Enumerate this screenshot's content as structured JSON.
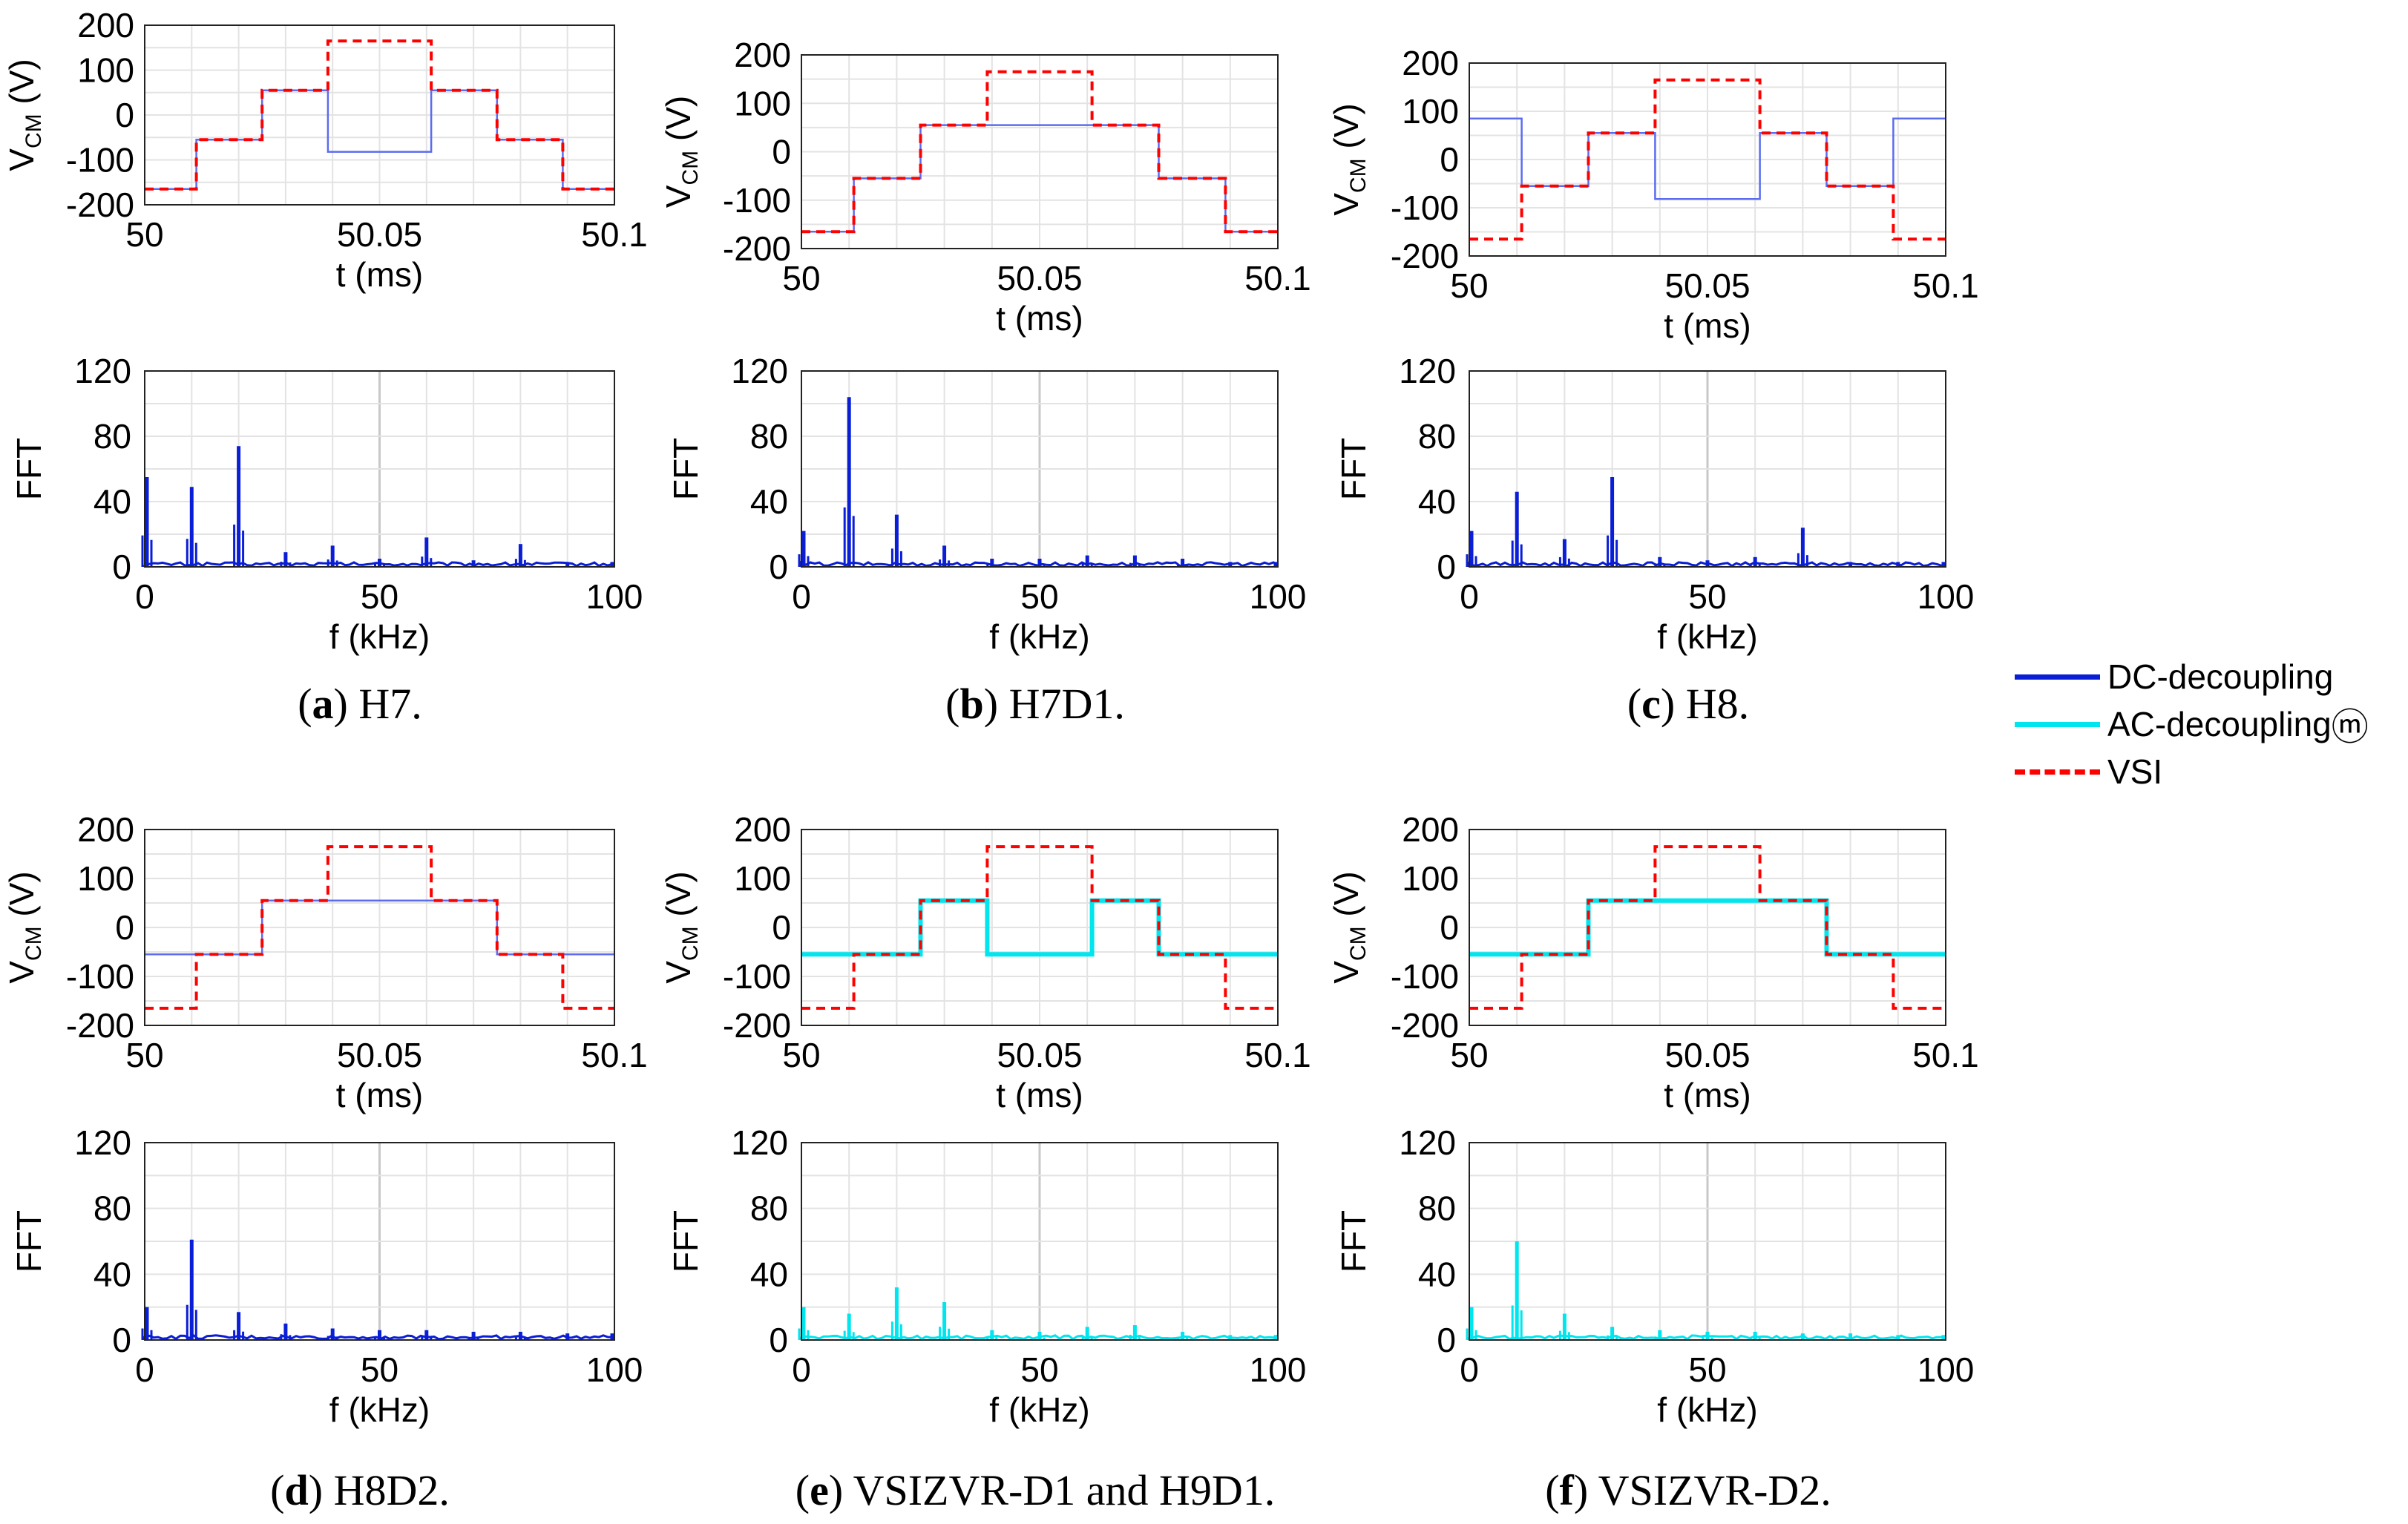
{
  "colors": {
    "dc": "#0a1ed6",
    "dc_time": "#5b6cf0",
    "ac": "#00e5ee",
    "vsi": "#ff0000"
  },
  "legend": {
    "items": [
      {
        "label": "DC-decoupling",
        "color": "#0a1ed6",
        "style": "solid"
      },
      {
        "label": "AC-decoupling",
        "color": "#00e5ee",
        "style": "solid"
      },
      {
        "label": "VSI",
        "color": "#ff0000",
        "style": "dashed"
      }
    ],
    "watermark_glyph": "ⓜ"
  },
  "panels": [
    {
      "letter": "a",
      "caption": "H7.",
      "decoupling": "dc"
    },
    {
      "letter": "b",
      "caption": "H7D1.",
      "decoupling": "dc"
    },
    {
      "letter": "c",
      "caption": "H8.",
      "decoupling": "dc"
    },
    {
      "letter": "d",
      "caption": "H8D2.",
      "decoupling": "dc"
    },
    {
      "letter": "e",
      "caption": "VSIZVR-D1 and H9D1.",
      "decoupling": "ac"
    },
    {
      "letter": "f",
      "caption": "VSIZVR-D2.",
      "decoupling": "ac"
    }
  ],
  "chart_data": [
    {
      "panel": "a",
      "type": "line",
      "title": "",
      "xlabel": "t (ms)",
      "ylabel": "V_CM (V)",
      "xlim": [
        50,
        50.1
      ],
      "ylim": [
        -200,
        200
      ],
      "xticks": [
        "50",
        "50.05",
        "50.1"
      ],
      "yticks": [
        "-200",
        "-100",
        "0",
        "100",
        "200"
      ],
      "series": [
        {
          "name": "VSI",
          "style": "dashed",
          "x": [
            50,
            50.011,
            50.011,
            50.025,
            50.025,
            50.039,
            50.039,
            50.061,
            50.061,
            50.075,
            50.075,
            50.089,
            50.089,
            50.1
          ],
          "y": [
            -165,
            -165,
            -55,
            -55,
            55,
            55,
            165,
            165,
            55,
            55,
            -55,
            -55,
            -165,
            -165
          ]
        },
        {
          "name": "DC-decoupling",
          "style": "solid",
          "x": [
            50,
            50.011,
            50.011,
            50.025,
            50.025,
            50.039,
            50.039,
            50.061,
            50.061,
            50.075,
            50.075,
            50.089,
            50.089,
            50.1
          ],
          "y": [
            -165,
            -165,
            -55,
            -55,
            55,
            55,
            -82,
            -82,
            55,
            55,
            -55,
            -55,
            -165,
            -165
          ]
        }
      ]
    },
    {
      "panel": "a",
      "type": "line",
      "title": "",
      "xlabel": "f (kHz)",
      "ylabel": "FFT",
      "xlim": [
        0,
        100
      ],
      "ylim": [
        0,
        120
      ],
      "xticks": [
        "0",
        "50",
        "100"
      ],
      "yticks": [
        "0",
        "40",
        "80",
        "120"
      ],
      "series": [
        {
          "name": "DC-decoupling",
          "x": [
            0,
            10,
            20,
            30,
            40,
            50,
            60,
            70,
            80,
            90,
            100
          ],
          "y": [
            55,
            49,
            74,
            9,
            13,
            5,
            18,
            4,
            14,
            3,
            3
          ]
        }
      ]
    },
    {
      "panel": "b",
      "type": "line",
      "title": "",
      "xlabel": "t (ms)",
      "ylabel": "V_CM (V)",
      "xlim": [
        50,
        50.1
      ],
      "ylim": [
        -200,
        200
      ],
      "xticks": [
        "50",
        "50.05",
        "50.1"
      ],
      "yticks": [
        "-200",
        "-100",
        "0",
        "100",
        "200"
      ],
      "series": [
        {
          "name": "VSI",
          "style": "dashed",
          "x": [
            50,
            50.011,
            50.011,
            50.025,
            50.025,
            50.039,
            50.039,
            50.061,
            50.061,
            50.075,
            50.075,
            50.089,
            50.089,
            50.1
          ],
          "y": [
            -165,
            -165,
            -55,
            -55,
            55,
            55,
            165,
            165,
            55,
            55,
            -55,
            -55,
            -165,
            -165
          ]
        },
        {
          "name": "DC-decoupling",
          "style": "solid",
          "x": [
            50,
            50.011,
            50.011,
            50.025,
            50.025,
            50.075,
            50.075,
            50.089,
            50.089,
            50.1
          ],
          "y": [
            -165,
            -165,
            -55,
            -55,
            55,
            55,
            -55,
            -55,
            -165,
            -165
          ]
        }
      ]
    },
    {
      "panel": "b",
      "type": "line",
      "title": "",
      "xlabel": "f (kHz)",
      "ylabel": "FFT",
      "xlim": [
        0,
        100
      ],
      "ylim": [
        0,
        120
      ],
      "xticks": [
        "0",
        "50",
        "100"
      ],
      "yticks": [
        "0",
        "40",
        "80",
        "120"
      ],
      "series": [
        {
          "name": "DC-decoupling",
          "x": [
            0,
            10,
            20,
            30,
            40,
            50,
            60,
            70,
            80,
            90,
            100
          ],
          "y": [
            22,
            104,
            32,
            13,
            5,
            5,
            7,
            7,
            5,
            3,
            3
          ]
        }
      ]
    },
    {
      "panel": "c",
      "type": "line",
      "title": "",
      "xlabel": "t (ms)",
      "ylabel": "V_CM (V)",
      "xlim": [
        50,
        50.1
      ],
      "ylim": [
        -200,
        200
      ],
      "xticks": [
        "50",
        "50.05",
        "50.1"
      ],
      "yticks": [
        "-200",
        "-100",
        "0",
        "100",
        "200"
      ],
      "series": [
        {
          "name": "VSI",
          "style": "dashed",
          "x": [
            50,
            50.011,
            50.011,
            50.025,
            50.025,
            50.039,
            50.039,
            50.061,
            50.061,
            50.075,
            50.075,
            50.089,
            50.089,
            50.1
          ],
          "y": [
            -165,
            -165,
            -55,
            -55,
            55,
            55,
            165,
            165,
            55,
            55,
            -55,
            -55,
            -165,
            -165
          ]
        },
        {
          "name": "DC-decoupling",
          "style": "solid",
          "x": [
            50,
            50.011,
            50.011,
            50.025,
            50.025,
            50.039,
            50.039,
            50.061,
            50.061,
            50.075,
            50.075,
            50.089,
            50.089,
            50.1
          ],
          "y": [
            85,
            85,
            -55,
            -55,
            55,
            55,
            -82,
            -82,
            55,
            55,
            -55,
            -55,
            85,
            85
          ]
        }
      ]
    },
    {
      "panel": "c",
      "type": "line",
      "title": "",
      "xlabel": "f (kHz)",
      "ylabel": "FFT",
      "xlim": [
        0,
        100
      ],
      "ylim": [
        0,
        120
      ],
      "xticks": [
        "0",
        "50",
        "100"
      ],
      "yticks": [
        "0",
        "40",
        "80",
        "120"
      ],
      "series": [
        {
          "name": "DC-decoupling",
          "x": [
            0,
            10,
            20,
            30,
            40,
            50,
            60,
            70,
            80,
            90,
            100
          ],
          "y": [
            22,
            46,
            17,
            55,
            6,
            4,
            6,
            24,
            3,
            3,
            3
          ]
        }
      ]
    },
    {
      "panel": "d",
      "type": "line",
      "title": "",
      "xlabel": "t (ms)",
      "ylabel": "V_CM (V)",
      "xlim": [
        50,
        50.1
      ],
      "ylim": [
        -200,
        200
      ],
      "xticks": [
        "50",
        "50.05",
        "50.1"
      ],
      "yticks": [
        "-200",
        "-100",
        "0",
        "100",
        "200"
      ],
      "series": [
        {
          "name": "VSI",
          "style": "dashed",
          "x": [
            50,
            50.011,
            50.011,
            50.025,
            50.025,
            50.039,
            50.039,
            50.061,
            50.061,
            50.075,
            50.075,
            50.089,
            50.089,
            50.1
          ],
          "y": [
            -165,
            -165,
            -55,
            -55,
            55,
            55,
            165,
            165,
            55,
            55,
            -55,
            -55,
            -165,
            -165
          ]
        },
        {
          "name": "DC-decoupling",
          "style": "solid",
          "x": [
            50,
            50.025,
            50.025,
            50.075,
            50.075,
            50.1
          ],
          "y": [
            -55,
            -55,
            55,
            55,
            -55,
            -55
          ]
        }
      ]
    },
    {
      "panel": "d",
      "type": "line",
      "title": "",
      "xlabel": "f (kHz)",
      "ylabel": "FFT",
      "xlim": [
        0,
        100
      ],
      "ylim": [
        0,
        120
      ],
      "xticks": [
        "0",
        "50",
        "100"
      ],
      "yticks": [
        "0",
        "40",
        "80",
        "120"
      ],
      "series": [
        {
          "name": "DC-decoupling",
          "x": [
            0,
            10,
            20,
            30,
            40,
            50,
            60,
            70,
            80,
            90,
            100
          ],
          "y": [
            20,
            61,
            17,
            10,
            7,
            6,
            6,
            5,
            5,
            4,
            4
          ]
        }
      ]
    },
    {
      "panel": "e",
      "type": "line",
      "title": "",
      "xlabel": "t (ms)",
      "ylabel": "V_CM (V)",
      "xlim": [
        50,
        50.1
      ],
      "ylim": [
        -200,
        200
      ],
      "xticks": [
        "50",
        "50.05",
        "50.1"
      ],
      "yticks": [
        "-200",
        "-100",
        "0",
        "100",
        "200"
      ],
      "series": [
        {
          "name": "VSI",
          "style": "dashed",
          "x": [
            50,
            50.011,
            50.011,
            50.025,
            50.025,
            50.039,
            50.039,
            50.061,
            50.061,
            50.075,
            50.075,
            50.089,
            50.089,
            50.1
          ],
          "y": [
            -165,
            -165,
            -55,
            -55,
            55,
            55,
            165,
            165,
            55,
            55,
            -55,
            -55,
            -165,
            -165
          ]
        },
        {
          "name": "AC-decoupling",
          "style": "solid",
          "x": [
            50,
            50.025,
            50.025,
            50.039,
            50.039,
            50.061,
            50.061,
            50.075,
            50.075,
            50.1
          ],
          "y": [
            -55,
            -55,
            55,
            55,
            -55,
            -55,
            55,
            55,
            -55,
            -55
          ]
        }
      ]
    },
    {
      "panel": "e",
      "type": "line",
      "title": "",
      "xlabel": "f (kHz)",
      "ylabel": "FFT",
      "xlim": [
        0,
        100
      ],
      "ylim": [
        0,
        120
      ],
      "xticks": [
        "0",
        "50",
        "100"
      ],
      "yticks": [
        "0",
        "40",
        "80",
        "120"
      ],
      "series": [
        {
          "name": "AC-decoupling",
          "x": [
            0,
            10,
            20,
            30,
            40,
            50,
            60,
            70,
            80,
            90,
            100
          ],
          "y": [
            20,
            16,
            32,
            23,
            6,
            5,
            8,
            9,
            5,
            3,
            3
          ]
        }
      ]
    },
    {
      "panel": "f",
      "type": "line",
      "title": "",
      "xlabel": "t (ms)",
      "ylabel": "V_CM (V)",
      "xlim": [
        50,
        50.1
      ],
      "ylim": [
        -200,
        200
      ],
      "xticks": [
        "50",
        "50.05",
        "50.1"
      ],
      "yticks": [
        "-200",
        "-100",
        "0",
        "100",
        "200"
      ],
      "series": [
        {
          "name": "VSI",
          "style": "dashed",
          "x": [
            50,
            50.011,
            50.011,
            50.025,
            50.025,
            50.039,
            50.039,
            50.061,
            50.061,
            50.075,
            50.075,
            50.089,
            50.089,
            50.1
          ],
          "y": [
            -165,
            -165,
            -55,
            -55,
            55,
            55,
            165,
            165,
            55,
            55,
            -55,
            -55,
            -165,
            -165
          ]
        },
        {
          "name": "AC-decoupling",
          "style": "solid",
          "x": [
            50,
            50.025,
            50.025,
            50.075,
            50.075,
            50.1
          ],
          "y": [
            -55,
            -55,
            55,
            55,
            -55,
            -55
          ]
        }
      ]
    },
    {
      "panel": "f",
      "type": "line",
      "title": "",
      "xlabel": "f (kHz)",
      "ylabel": "FFT",
      "xlim": [
        0,
        100
      ],
      "ylim": [
        0,
        120
      ],
      "xticks": [
        "0",
        "50",
        "100"
      ],
      "yticks": [
        "0",
        "40",
        "80",
        "120"
      ],
      "series": [
        {
          "name": "AC-decoupling",
          "x": [
            0,
            10,
            20,
            30,
            40,
            50,
            60,
            70,
            80,
            90,
            100
          ],
          "y": [
            20,
            60,
            16,
            8,
            6,
            5,
            5,
            4,
            4,
            3,
            3
          ]
        }
      ]
    }
  ]
}
